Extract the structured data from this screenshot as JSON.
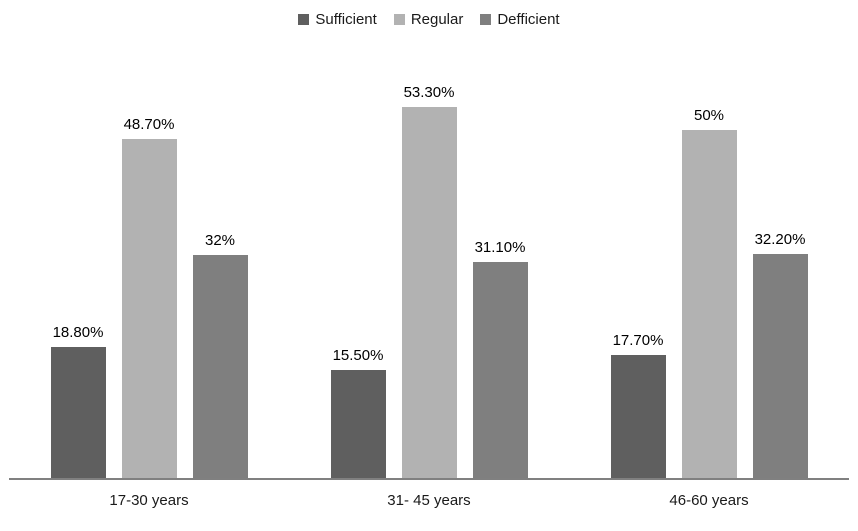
{
  "chart_data": {
    "type": "bar",
    "title": "",
    "xlabel": "",
    "ylabel": "",
    "categories": [
      "17-30 years",
      "31- 45 years",
      "46-60 years"
    ],
    "series": [
      {
        "name": "Sufficient",
        "color": "#5F5F5F",
        "values": [
          18.8,
          15.5,
          17.7
        ],
        "value_labels": [
          "18.80%",
          "15.50%",
          "17.70%"
        ]
      },
      {
        "name": "Regular",
        "color": "#B2B2B2",
        "values": [
          48.7,
          53.3,
          50.0
        ],
        "value_labels": [
          "48.70%",
          "53.30%",
          "50%"
        ]
      },
      {
        "name": "Defficient",
        "color": "#7F7F7F",
        "values": [
          32.0,
          31.1,
          32.2
        ],
        "value_labels": [
          "32%",
          "31.10%",
          "32.20%"
        ]
      }
    ],
    "legend": {
      "position": "top-center",
      "entries": [
        "Sufficient",
        "Regular",
        "Defficient"
      ]
    },
    "ylim": [
      0,
      60
    ],
    "y_axis_shown": false,
    "grid": false,
    "value_labels_shown": true,
    "colors": {
      "background": "#FFFFFF",
      "axis_line": "#808080",
      "label_text": "#000000"
    }
  }
}
